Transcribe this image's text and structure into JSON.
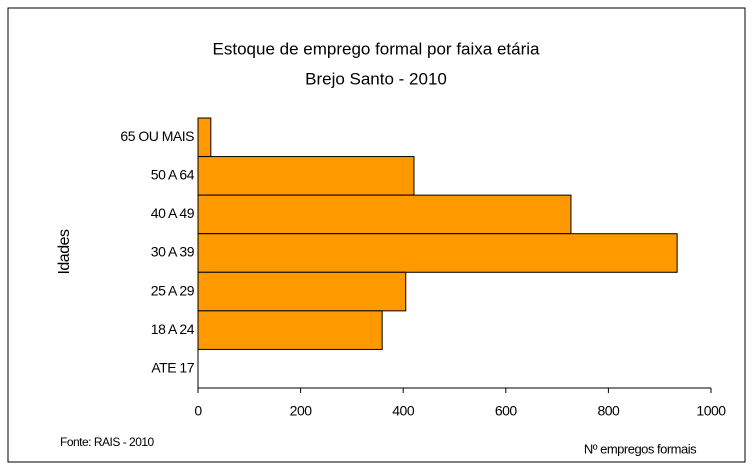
{
  "chart_data": {
    "type": "bar",
    "orientation": "horizontal",
    "title": "Estoque de emprego formal por faixa etária",
    "subtitle": "Brejo Santo - 2010",
    "y_label": "Idades",
    "x_label": "Nº empregos formais",
    "source": "Fonte: RAIS - 2010",
    "categories": [
      "65 OU MAIS",
      "50 A 64",
      "40 A 49",
      "30 A 39",
      "25 A 29",
      "18 A 24",
      "ATE 17"
    ],
    "values": [
      25,
      421,
      727,
      934,
      405,
      359,
      0
    ],
    "color": "#ff9900",
    "xlim": [
      0,
      1000
    ],
    "xticks": [
      0,
      200,
      400,
      600,
      800,
      1000
    ],
    "grid": false
  }
}
